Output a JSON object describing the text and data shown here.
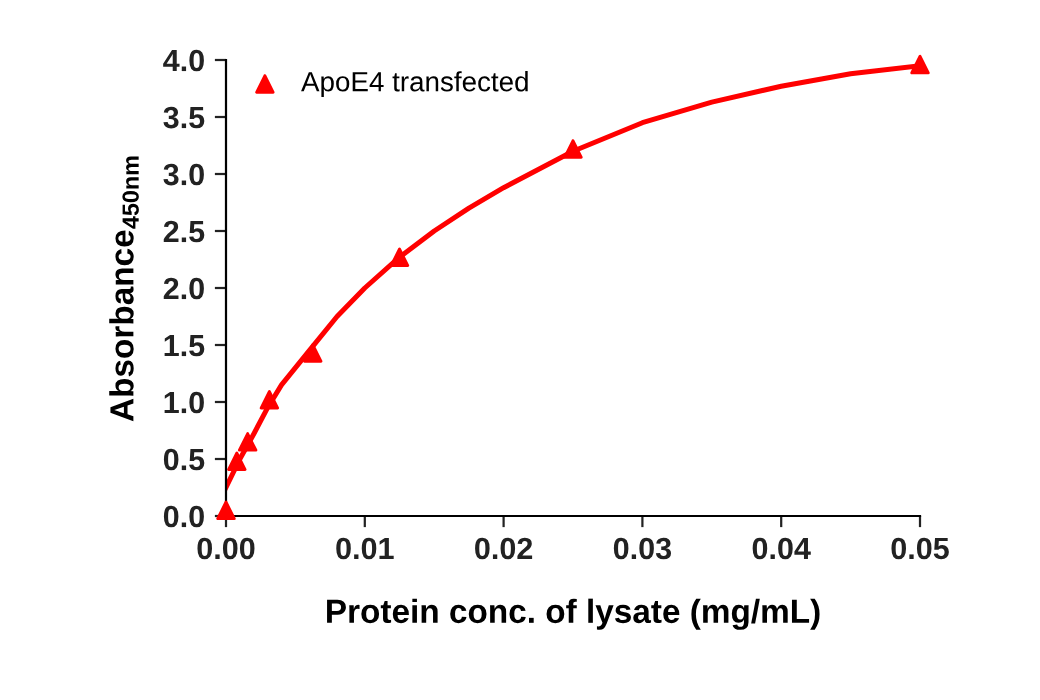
{
  "chart_data": {
    "type": "scatter",
    "xlabel": "Protein conc. of lysate (mg/mL)",
    "ylabel": "Absorbance$_{450nm}$",
    "xlim": [
      0,
      0.05
    ],
    "xticks": [
      {
        "value": 0,
        "label": "0.00"
      },
      0.01,
      0.02,
      0.03,
      0.04,
      0.05
    ],
    "ylim": [
      0,
      4
    ],
    "yticks": [
      {
        "value": 0,
        "label": "0.0"
      },
      0.5,
      {
        "value": 1,
        "label": "1.0"
      },
      1.5,
      {
        "value": 2,
        "label": "2.0"
      },
      2.5,
      {
        "value": 3,
        "label": "3.0"
      },
      3.5,
      {
        "value": 4,
        "label": "4.0"
      }
    ],
    "grid": false,
    "legend": "top left",
    "series": [
      {
        "name": "ApoE4 transfected",
        "color": "#ff0000",
        "marker": "triangle",
        "x": [
          0,
          0.00078,
          0.00156,
          0.003125,
          0.00625,
          0.0125,
          0.025,
          0.05
        ],
        "values": [
          0.05,
          0.48,
          0.65,
          1.02,
          1.43,
          2.27,
          3.22,
          3.96
        ]
      },
      {
        "color": "#ff0000",
        "type": "line",
        "marker": "none",
        "line_style": "solid",
        "x": [
          0,
          0.001,
          0.002,
          0.003,
          0.004,
          0.006,
          0.008,
          0.01,
          0.0125,
          0.015,
          0.0175,
          0.02,
          0.025,
          0.03,
          0.035,
          0.04,
          0.045,
          0.05
        ],
        "values": [
          0.25,
          0.5,
          0.72,
          0.95,
          1.15,
          1.45,
          1.75,
          2.0,
          2.27,
          2.5,
          2.7,
          2.88,
          3.2,
          3.45,
          3.63,
          3.77,
          3.88,
          3.95
        ]
      }
    ]
  }
}
